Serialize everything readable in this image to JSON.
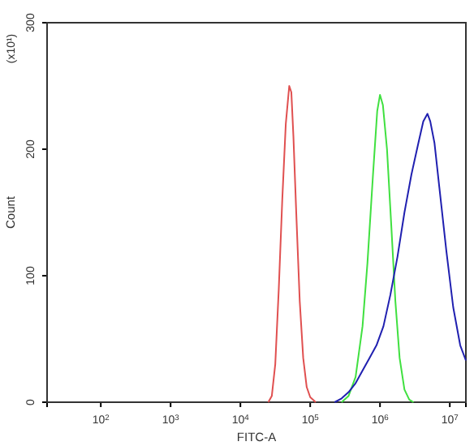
{
  "chart_data": {
    "type": "line",
    "xlabel": "FITC-A",
    "ylabel": "Count",
    "annotations": [
      "(x10¹)"
    ],
    "log": "x",
    "grid": false,
    "marker": "none",
    "line_style": "solid",
    "xlim": [
      17,
      17000000
    ],
    "ylim": [
      0,
      300
    ],
    "xticks": [
      {
        "value": 100,
        "label": "10$^{2}$"
      },
      {
        "value": 1000,
        "label": "10$^{3}$"
      },
      {
        "value": 10000,
        "label": "10$^{4}$"
      },
      {
        "value": 100000,
        "label": "10$^{5}$"
      },
      {
        "value": 1000000,
        "label": "10$^{6}$"
      },
      {
        "value": 10000000,
        "label": "10$^{7}$"
      }
    ],
    "yticks": [
      0,
      100,
      200,
      300
    ],
    "series": [
      {
        "color": "#e05050",
        "x": [
          25100,
          28200,
          31600,
          35500,
          39800,
          44700,
          50100,
          53700,
          57500,
          63100,
          70800,
          79400,
          89100,
          100000,
          120000
        ],
        "values": [
          0,
          5,
          30,
          90,
          160,
          220,
          250,
          245,
          210,
          150,
          80,
          35,
          12,
          4,
          0
        ]
      },
      {
        "color": "#40e040",
        "x": [
          282000,
          355000,
          447000,
          562000,
          661000,
          794000,
          912000,
          1000000,
          1100000,
          1260000,
          1450000,
          1660000,
          1910000,
          2240000,
          2630000,
          3020000
        ],
        "values": [
          0,
          5,
          20,
          60,
          110,
          180,
          230,
          243,
          235,
          200,
          140,
          80,
          35,
          10,
          2,
          0
        ]
      },
      {
        "color": "#2020b0",
        "x": [
          224000,
          282000,
          355000,
          447000,
          562000,
          708000,
          891000,
          1120000,
          1410000,
          1780000,
          2240000,
          2820000,
          3550000,
          4170000,
          4790000,
          5250000,
          6030000,
          7080000,
          8910000,
          11200000,
          14100000,
          17000000
        ],
        "values": [
          0,
          3,
          8,
          15,
          25,
          35,
          45,
          60,
          85,
          115,
          150,
          180,
          205,
          222,
          228,
          222,
          205,
          170,
          120,
          75,
          45,
          33
        ]
      }
    ]
  }
}
